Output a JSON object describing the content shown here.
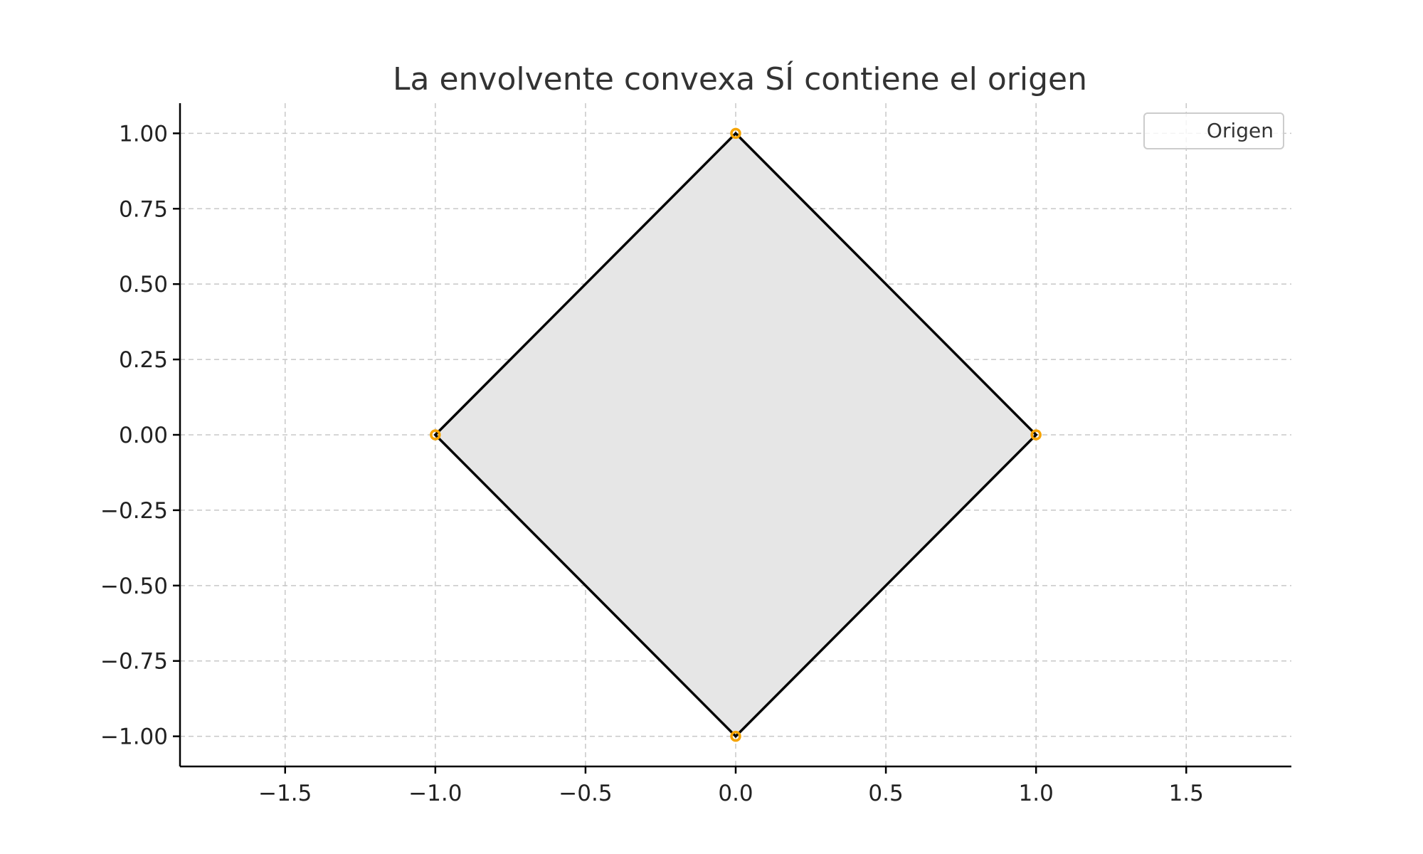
{
  "chart_data": {
    "type": "scatter",
    "title": "La envolvente convexa SÍ contiene el origen",
    "xlabel": "",
    "ylabel": "",
    "xlim": [
      -1.85,
      1.85
    ],
    "ylim": [
      -1.1,
      1.1
    ],
    "x_ticks": [
      {
        "value": -1.5,
        "label": "−1.5"
      },
      {
        "value": -1.0,
        "label": "−1.0"
      },
      {
        "value": -0.5,
        "label": "−0.5"
      },
      {
        "value": 0.0,
        "label": "0.0"
      },
      {
        "value": 0.5,
        "label": "0.5"
      },
      {
        "value": 1.0,
        "label": "1.0"
      },
      {
        "value": 1.5,
        "label": "1.5"
      }
    ],
    "y_ticks": [
      {
        "value": 1.0,
        "label": "1.00"
      },
      {
        "value": 0.75,
        "label": "0.75"
      },
      {
        "value": 0.5,
        "label": "0.50"
      },
      {
        "value": 0.25,
        "label": "0.25"
      },
      {
        "value": 0.0,
        "label": "0.00"
      },
      {
        "value": -0.25,
        "label": "−0.25"
      },
      {
        "value": -0.5,
        "label": "−0.50"
      },
      {
        "value": -0.75,
        "label": "−0.75"
      },
      {
        "value": -1.0,
        "label": "−1.00"
      }
    ],
    "grid": true,
    "legend": {
      "position": "top-right",
      "entries": [
        "Origen"
      ]
    },
    "points": [
      {
        "x": 0,
        "y": 1
      },
      {
        "x": 1,
        "y": 0
      },
      {
        "x": 0,
        "y": -1
      },
      {
        "x": -1,
        "y": 0
      }
    ],
    "hull": [
      [
        0,
        1
      ],
      [
        1,
        0
      ],
      [
        0,
        -1
      ],
      [
        -1,
        0
      ]
    ],
    "colors": {
      "hull_fill": "#e6e6e6",
      "hull_edge": "#000000",
      "points": "#f5a300",
      "grid": "#c8c8c8"
    }
  }
}
